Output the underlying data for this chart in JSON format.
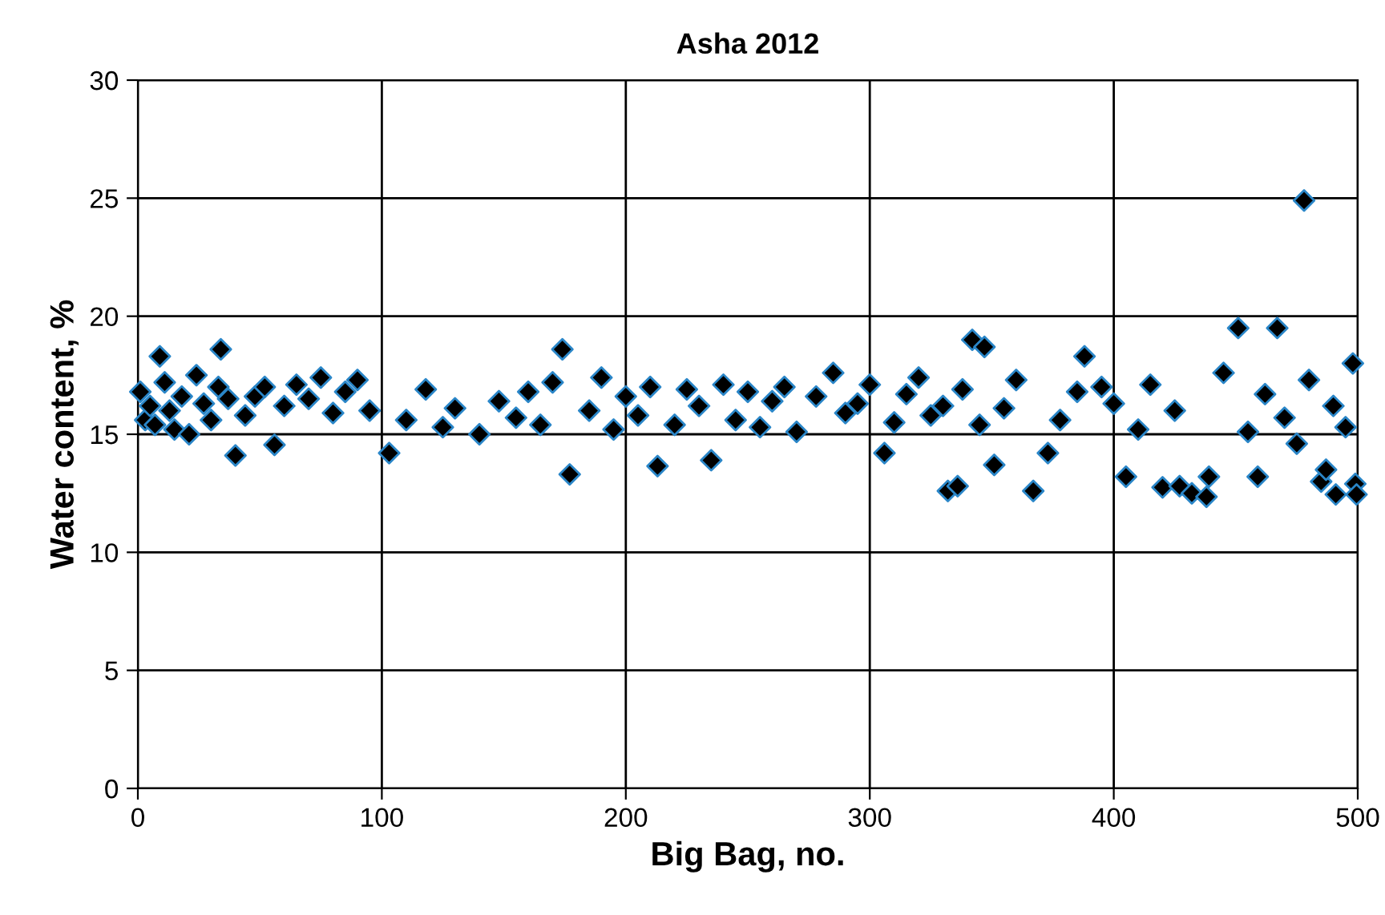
{
  "chart_data": {
    "type": "scatter",
    "title": "Asha 2012",
    "xlabel": "Big Bag, no.",
    "ylabel": "Water content, %",
    "x": [
      1,
      3,
      5,
      7,
      9,
      11,
      13,
      15,
      18,
      21,
      24,
      27,
      30,
      33,
      34,
      37,
      40,
      44,
      48,
      52,
      56,
      60,
      65,
      70,
      75,
      80,
      85,
      90,
      95,
      103,
      110,
      118,
      125,
      130,
      140,
      148,
      155,
      160,
      165,
      170,
      174,
      177,
      185,
      190,
      195,
      200,
      205,
      210,
      213,
      220,
      225,
      230,
      235,
      240,
      245,
      250,
      255,
      260,
      265,
      270,
      278,
      285,
      290,
      295,
      300,
      306,
      310,
      315,
      320,
      325,
      330,
      332,
      336,
      338,
      342,
      345,
      347,
      351,
      355,
      360,
      367,
      373,
      378,
      385,
      388,
      395,
      400,
      405,
      410,
      415,
      420,
      425,
      427,
      432,
      438,
      439,
      445,
      451,
      455,
      459,
      462,
      467,
      470,
      475,
      478,
      480,
      485,
      487,
      490,
      491,
      495,
      498,
      499,
      499.5
    ],
    "values": [
      16.8,
      15.6,
      16.2,
      15.4,
      18.3,
      17.2,
      16.0,
      15.2,
      16.6,
      15.0,
      17.5,
      16.3,
      15.6,
      17.0,
      18.6,
      16.5,
      14.1,
      15.8,
      16.6,
      17.0,
      14.55,
      16.2,
      17.1,
      16.5,
      17.4,
      15.9,
      16.8,
      17.3,
      16.0,
      14.2,
      15.6,
      16.9,
      15.3,
      16.1,
      15.0,
      16.4,
      15.7,
      16.8,
      15.4,
      17.2,
      18.6,
      13.3,
      16.0,
      17.4,
      15.2,
      16.6,
      15.8,
      17.0,
      13.65,
      15.4,
      16.9,
      16.2,
      13.9,
      17.1,
      15.6,
      16.8,
      15.3,
      16.4,
      17.0,
      15.1,
      16.6,
      17.6,
      15.9,
      16.3,
      17.1,
      14.2,
      15.5,
      16.7,
      17.4,
      15.8,
      16.2,
      12.6,
      12.8,
      16.9,
      19.0,
      15.4,
      18.7,
      13.7,
      16.1,
      17.3,
      12.6,
      14.2,
      15.6,
      16.8,
      18.3,
      17.0,
      16.3,
      13.2,
      15.2,
      17.1,
      12.75,
      16.0,
      12.8,
      12.5,
      12.35,
      13.2,
      17.6,
      19.5,
      15.1,
      13.2,
      16.7,
      19.5,
      15.7,
      14.6,
      24.9,
      17.3,
      13.0,
      13.5,
      16.2,
      12.45,
      15.3,
      18.0,
      12.9,
      12.45
    ],
    "color": "#000000",
    "marker": "diamond",
    "xlim": [
      0,
      500
    ],
    "xticks": [
      0,
      100,
      200,
      300,
      400,
      500
    ],
    "ylim": [
      0,
      30
    ],
    "yticks": [
      0,
      5,
      10,
      15,
      20,
      25,
      30
    ],
    "grid": true
  }
}
